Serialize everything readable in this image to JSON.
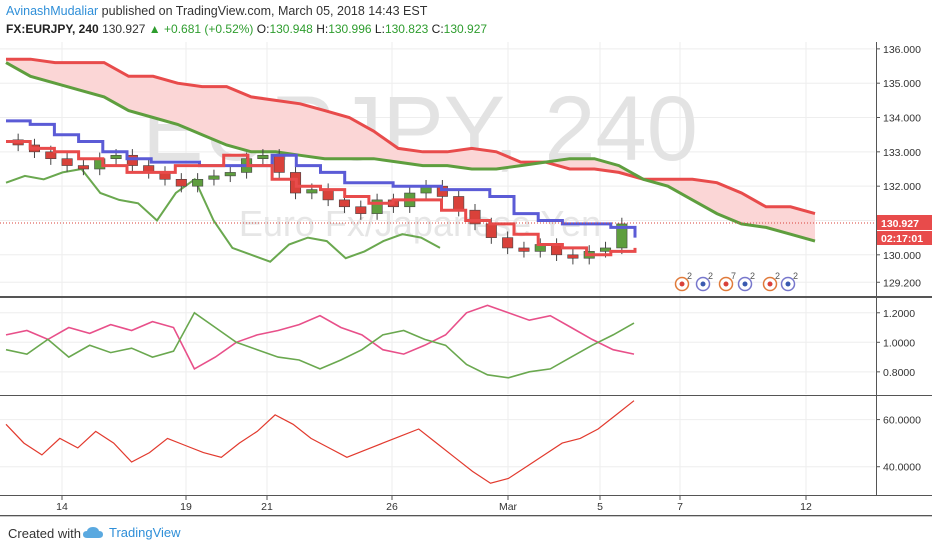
{
  "header": {
    "author": "AvinashMudaliar",
    "published_text": "published on TradingView.com, March 05, 2018 14:43 EST",
    "symbol": "FX:EURJPY, 240",
    "last": "130.927",
    "change": "+0.681 (+0.52%)",
    "o_label": "O:",
    "o_value": "130.948",
    "h_label": "H:",
    "h_value": "130.996",
    "l_label": "L:",
    "l_value": "130.823",
    "c_label": "C:",
    "c_value": "130.927"
  },
  "watermark": {
    "main": "EURJPY, 240",
    "sub": "Euro Fx/Japanese Yen"
  },
  "price_labels": {
    "last_price": "130.927",
    "countdown": "02:17:01"
  },
  "footer": {
    "created_with": "Created with",
    "brand": "TradingView"
  },
  "colors": {
    "ema_fast": "#5b5bd6",
    "cloud_upper": "#e84b4b",
    "cloud_lower": "#5e9e3e",
    "cloud_fill": "#fbd6d6",
    "kijun": "#e84b4b",
    "chikou": "#6aa84f",
    "candle_up": "#5e9e3e",
    "candle_down": "#d9413a",
    "osc_pink": "#e8508a",
    "osc_green": "#6aa84f",
    "rsi": "#e23a2e"
  },
  "chart_data": [
    {
      "type": "candlestick",
      "title": "",
      "ylim": [
        128.8,
        136.2
      ],
      "yticks": [
        "136.000",
        "135.000",
        "134.000",
        "133.000",
        "132.000",
        "131.000",
        "130.000",
        "129.200"
      ],
      "xticks": [
        "14",
        "19",
        "21",
        "26",
        "Mar",
        "5",
        "7",
        "12"
      ],
      "series": [
        {
          "name": "upper_cloud",
          "values": [
            135.7,
            135.7,
            135.6,
            135.6,
            135.6,
            135.2,
            135.2,
            135.0,
            134.9,
            134.9,
            134.6,
            134.5,
            134.4,
            134.2,
            134.0,
            133.6,
            133.1,
            133.0,
            133.0,
            133.1,
            133.0,
            132.7,
            132.7,
            132.5,
            132.5,
            132.4,
            132.2,
            132.2,
            132.2,
            132.1,
            131.8,
            131.4,
            131.4,
            131.2
          ]
        },
        {
          "name": "lower_cloud",
          "values": [
            135.6,
            135.2,
            135.0,
            134.8,
            134.6,
            134.2,
            134.0,
            133.8,
            133.5,
            133.2,
            133.0,
            133.0,
            132.9,
            132.8,
            132.8,
            132.8,
            132.7,
            132.6,
            132.6,
            132.5,
            132.5,
            132.6,
            132.7,
            132.8,
            132.8,
            132.6,
            132.2,
            132.0,
            131.6,
            131.2,
            130.9,
            130.8,
            130.6,
            130.4
          ]
        },
        {
          "name": "blue_line",
          "values": [
            133.9,
            133.8,
            133.5,
            133.3,
            133.0,
            132.8,
            132.7,
            132.7,
            132.6,
            132.6,
            132.6,
            132.9,
            132.6,
            132.4,
            132.1,
            132.1,
            132.0,
            132.0,
            131.9,
            131.9,
            131.7,
            131.2,
            131.0,
            130.9,
            130.9,
            130.8,
            130.5
          ]
        },
        {
          "name": "red_line",
          "values": [
            133.3,
            133.1,
            133.0,
            132.8,
            132.6,
            132.4,
            132.4,
            132.6,
            132.6,
            132.9,
            132.6,
            132.2,
            132.0,
            131.9,
            131.7,
            131.5,
            131.6,
            131.6,
            131.3,
            131.0,
            130.9,
            130.6,
            130.3,
            130.2,
            130.0,
            130.1,
            130.2
          ]
        },
        {
          "name": "green_lagging",
          "values": [
            132.1,
            132.3,
            132.2,
            132.4,
            132.5,
            131.8,
            131.6,
            131.5,
            131.0,
            131.8,
            132.2,
            131.0,
            130.2,
            130.0,
            129.8,
            130.3,
            130.5,
            130.4,
            129.9,
            130.1,
            130.4,
            130.6,
            130.5,
            130.2
          ]
        },
        {
          "name": "close",
          "values": [
            133.2,
            133.0,
            132.8,
            132.6,
            132.5,
            132.8,
            132.9,
            132.6,
            132.4,
            132.2,
            132.0,
            132.2,
            132.3,
            132.4,
            132.8,
            132.9,
            132.4,
            131.8,
            131.9,
            131.6,
            131.4,
            131.2,
            131.6,
            131.4,
            131.8,
            132.0,
            131.7,
            131.3,
            130.9,
            130.5,
            130.2,
            130.1,
            130.3,
            130.0,
            129.9,
            130.1,
            130.2,
            130.9
          ]
        }
      ]
    },
    {
      "type": "line",
      "ylim": [
        0.65,
        1.3
      ],
      "yticks": [
        "1.2000",
        "1.0000",
        "0.8000"
      ],
      "series": [
        {
          "name": "pink",
          "values": [
            1.05,
            1.08,
            1.02,
            1.1,
            1.06,
            1.12,
            1.08,
            1.14,
            1.1,
            0.82,
            0.9,
            1.0,
            1.05,
            1.08,
            1.12,
            1.18,
            1.1,
            1.05,
            0.95,
            0.92,
            0.98,
            1.05,
            1.2,
            1.25,
            1.2,
            1.15,
            1.18,
            1.1,
            1.02,
            0.95,
            0.92
          ]
        },
        {
          "name": "green",
          "values": [
            0.95,
            0.92,
            1.02,
            0.9,
            0.98,
            0.93,
            0.96,
            0.9,
            0.94,
            1.2,
            1.1,
            1.0,
            0.95,
            0.9,
            0.88,
            0.82,
            0.88,
            0.95,
            1.05,
            1.08,
            1.02,
            0.98,
            0.85,
            0.78,
            0.76,
            0.8,
            0.82,
            0.9,
            0.98,
            1.05,
            1.13
          ]
        }
      ]
    },
    {
      "type": "line",
      "ylim": [
        28,
        70
      ],
      "yticks": [
        "60.0000",
        "40.0000"
      ],
      "series": [
        {
          "name": "rsi",
          "values": [
            58,
            50,
            45,
            52,
            48,
            55,
            50,
            42,
            46,
            52,
            49,
            46,
            44,
            50,
            55,
            62,
            58,
            52,
            48,
            44,
            47,
            50,
            53,
            56,
            50,
            44,
            38,
            33,
            35,
            40,
            45,
            50,
            52,
            56,
            62,
            68
          ]
        }
      ]
    }
  ]
}
